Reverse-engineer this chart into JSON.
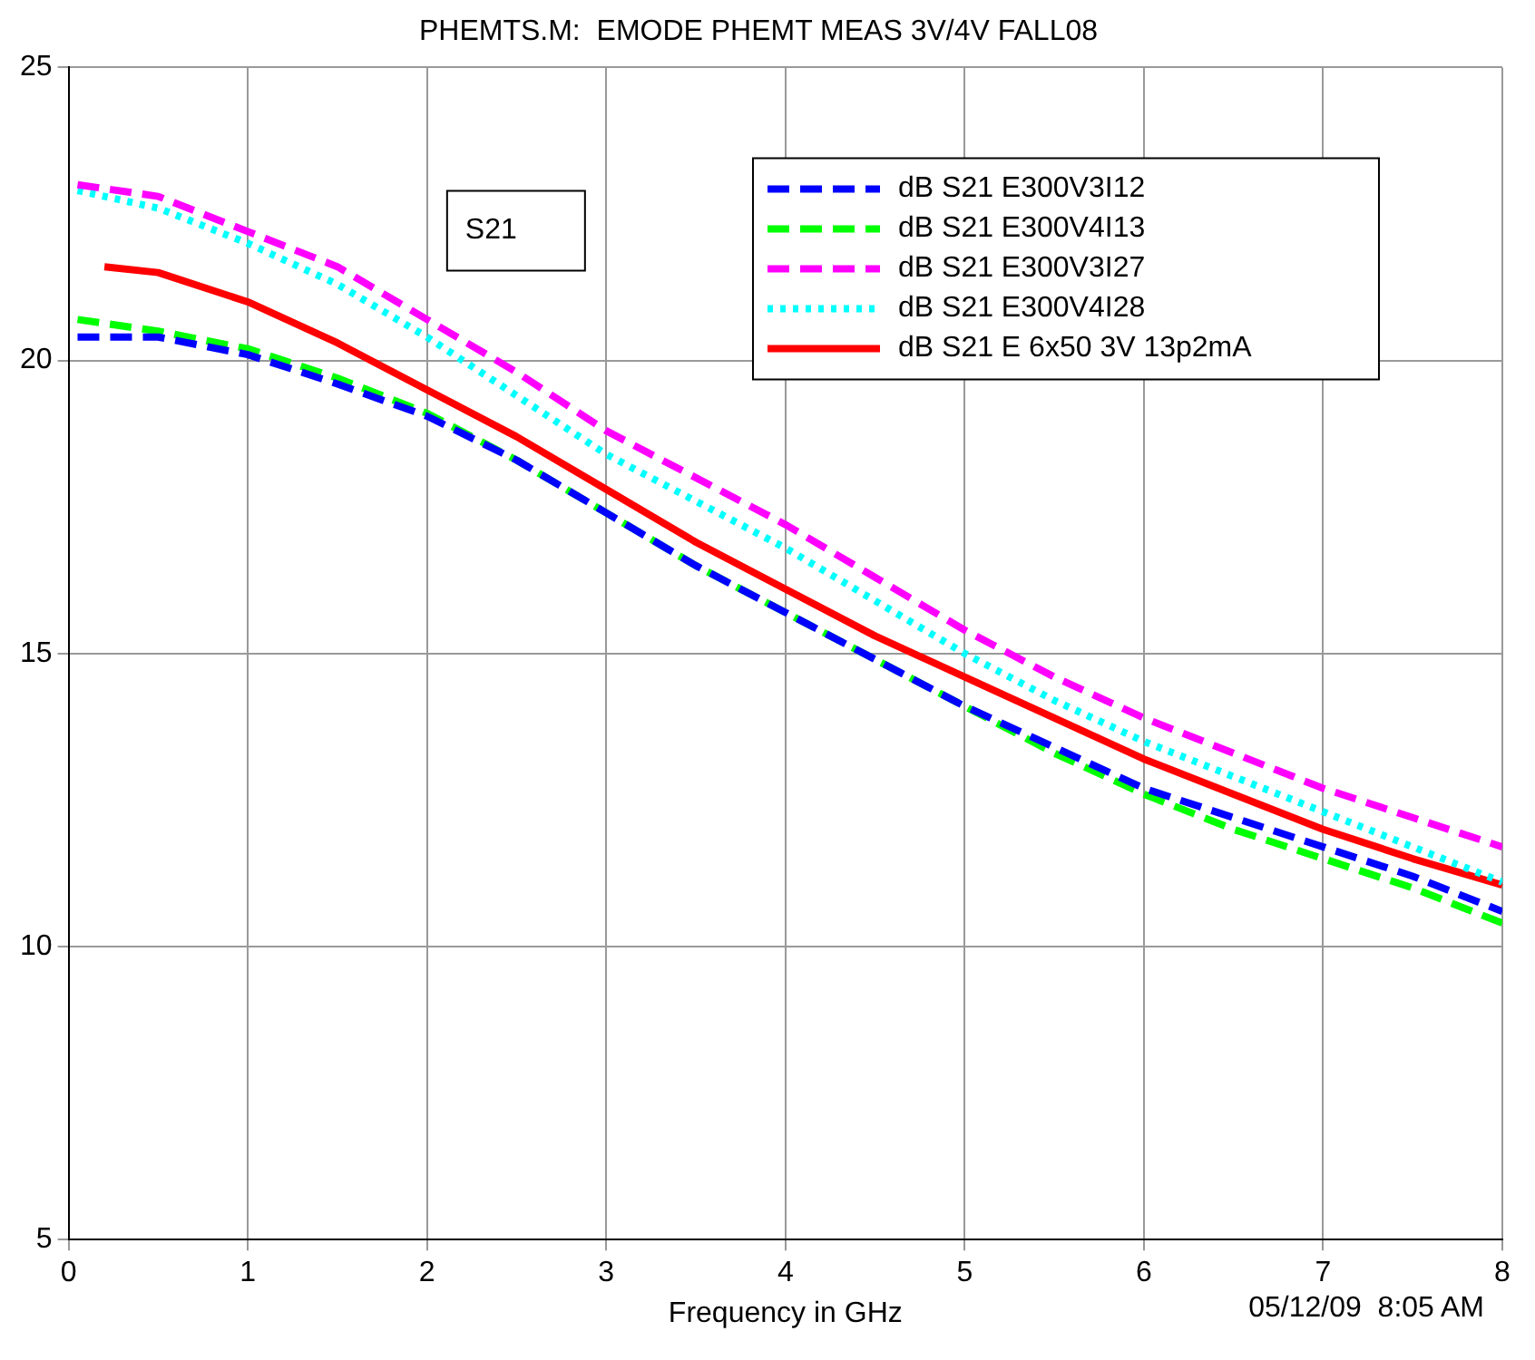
{
  "chart_data": {
    "type": "line",
    "title": "PHEMTS.M:  EMODE PHEMT MEAS 3V/4V FALL08",
    "xlabel": "Frequency in GHz",
    "xlim": [
      0,
      8
    ],
    "xticks": [
      0,
      1,
      2,
      3,
      4,
      5,
      6,
      7,
      8
    ],
    "ylim": [
      5,
      25
    ],
    "yticks": [
      5,
      10,
      15,
      20,
      25
    ],
    "grid": true,
    "legend": "top right",
    "marker": "none",
    "annotations": [
      "S21",
      "05/12/09  8:05 AM"
    ],
    "series": [
      {
        "name": "dB S21 E300V3I12",
        "color": "#0000ff",
        "line_style": "dashed",
        "x": [
          0.05,
          0.5,
          1,
          1.5,
          2,
          2.5,
          3,
          3.5,
          4,
          4.5,
          5,
          5.5,
          6,
          6.5,
          7,
          7.5,
          8
        ],
        "values": [
          20.4,
          20.4,
          20.1,
          19.6,
          19.05,
          18.3,
          17.4,
          16.5,
          15.7,
          14.9,
          14.1,
          13.4,
          12.7,
          12.2,
          11.7,
          11.2,
          10.6
        ]
      },
      {
        "name": "dB S21 E300V4I13",
        "color": "#00ff00",
        "line_style": "dashed",
        "x": [
          0.05,
          0.5,
          1,
          1.5,
          2,
          2.5,
          3,
          3.5,
          4,
          4.5,
          5,
          5.5,
          6,
          6.5,
          7,
          7.5,
          8
        ],
        "values": [
          20.7,
          20.5,
          20.2,
          19.7,
          19.1,
          18.3,
          17.4,
          16.5,
          15.7,
          14.9,
          14.1,
          13.3,
          12.6,
          12.0,
          11.5,
          11.0,
          10.4
        ]
      },
      {
        "name": "dB S21 E300V3I27",
        "color": "#ff00ff",
        "line_style": "dashed",
        "x": [
          0.05,
          0.5,
          1,
          1.5,
          2,
          2.5,
          3,
          3.5,
          4,
          4.5,
          5,
          5.5,
          6,
          6.5,
          7,
          7.5,
          8
        ],
        "values": [
          23.0,
          22.8,
          22.2,
          21.6,
          20.7,
          19.8,
          18.8,
          18.0,
          17.2,
          16.3,
          15.4,
          14.6,
          13.9,
          13.3,
          12.7,
          12.2,
          11.7
        ]
      },
      {
        "name": "dB S21 E300V4I28",
        "color": "#00ffff",
        "line_style": "dotted",
        "x": [
          0.05,
          0.5,
          1,
          1.5,
          2,
          2.5,
          3,
          3.5,
          4,
          4.5,
          5,
          5.5,
          6,
          6.5,
          7,
          7.5,
          8
        ],
        "values": [
          22.9,
          22.6,
          22.0,
          21.3,
          20.4,
          19.4,
          18.4,
          17.6,
          16.8,
          15.9,
          15.0,
          14.2,
          13.5,
          12.9,
          12.3,
          11.7,
          11.1
        ]
      },
      {
        "name": "dB S21 E 6x50 3V 13p2mA",
        "color": "#ff0000",
        "line_style": "solid",
        "x": [
          0.2,
          0.5,
          1,
          1.5,
          2,
          2.5,
          3,
          3.5,
          4,
          4.5,
          5,
          5.5,
          6,
          6.5,
          7,
          7.5,
          8
        ],
        "values": [
          21.6,
          21.5,
          21.0,
          20.3,
          19.5,
          18.7,
          17.8,
          16.9,
          16.1,
          15.3,
          14.6,
          13.9,
          13.2,
          12.6,
          12.0,
          11.5,
          11.05
        ]
      }
    ]
  }
}
